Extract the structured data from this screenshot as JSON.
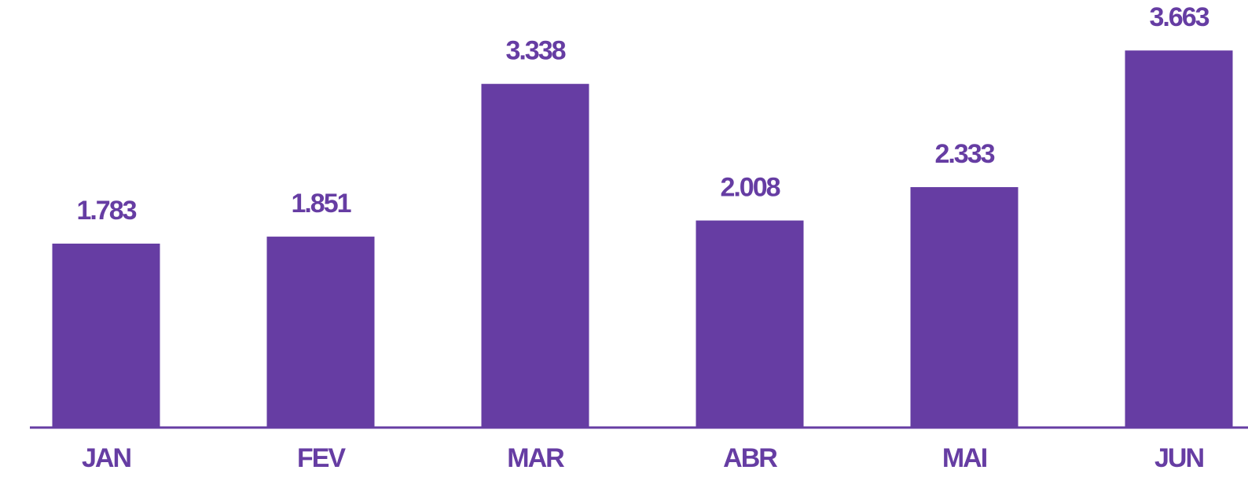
{
  "chart_data": {
    "type": "bar",
    "categories": [
      "JAN",
      "FEV",
      "MAR",
      "ABR",
      "MAI",
      "JUN"
    ],
    "values": [
      1783,
      1851,
      3338,
      2008,
      2333,
      3663
    ],
    "value_labels": [
      "1.783",
      "1.851",
      "3.338",
      "2.008",
      "2.333",
      "3.663"
    ],
    "color": "#663da3"
  }
}
